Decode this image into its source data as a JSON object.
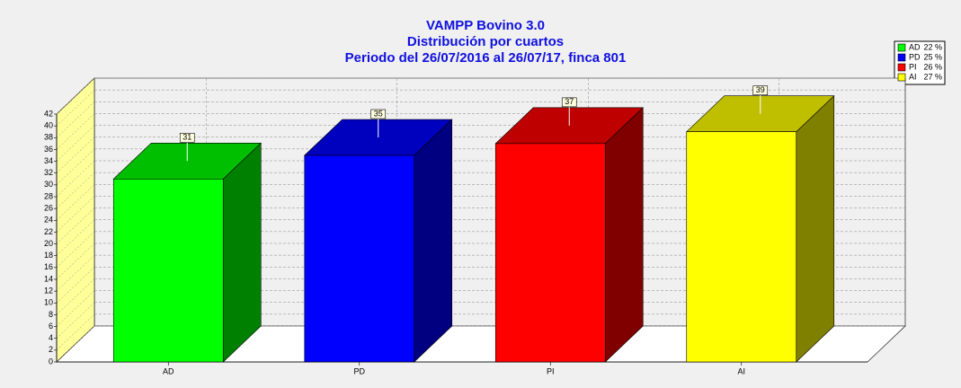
{
  "chart_data": {
    "type": "bar3d",
    "title": [
      "VAMPP Bovino 3.0",
      "Distribución por cuartos",
      "Periodo del 26/07/2016 al 26/07/17, finca 801"
    ],
    "categories": [
      "AD",
      "PD",
      "PI",
      "AI"
    ],
    "values": [
      31,
      35,
      37,
      39
    ],
    "colors": [
      "#00ff00",
      "#0000ff",
      "#ff0000",
      "#ffff00"
    ],
    "share_labels": [
      "22 %",
      "25 %",
      "26 %",
      "27 %"
    ],
    "ylim": [
      0,
      42
    ],
    "yticks": [
      0,
      2,
      4,
      6,
      8,
      10,
      12,
      14,
      16,
      18,
      20,
      22,
      24,
      26,
      28,
      30,
      32,
      34,
      36,
      38,
      40,
      42
    ],
    "grid": true
  }
}
